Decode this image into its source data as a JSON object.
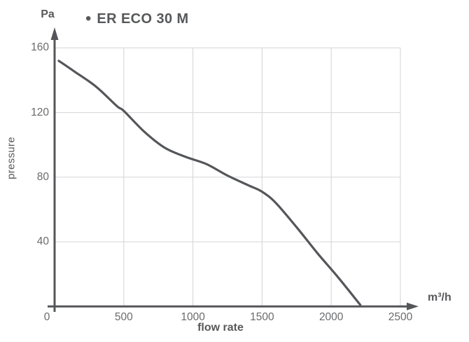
{
  "chart": {
    "legend": {
      "bullet": "•"
    },
    "colors": {
      "curve": "#55565a",
      "axis": "#55565a",
      "grid": "#d9dadb",
      "tick_text": "#6a6b6d",
      "label_text": "#58595b"
    }
  },
  "chart_data": {
    "type": "line",
    "title": "",
    "xlabel": "flow rate",
    "x_unit": "m³/h",
    "ylabel": "pressure",
    "y_unit": "Pa",
    "xlim": [
      0,
      2500
    ],
    "ylim": [
      0,
      160
    ],
    "x_ticks": [
      0,
      500,
      1000,
      1500,
      2000,
      2500
    ],
    "y_ticks": [
      40,
      80,
      120,
      160
    ],
    "grid": true,
    "legend_position": "top-left",
    "series": [
      {
        "name": "ER ECO 30 M",
        "points": [
          [
            30,
            152
          ],
          [
            150,
            145
          ],
          [
            300,
            136
          ],
          [
            450,
            124
          ],
          [
            500,
            121
          ],
          [
            650,
            108
          ],
          [
            800,
            98
          ],
          [
            950,
            92.5
          ],
          [
            1100,
            88
          ],
          [
            1250,
            81
          ],
          [
            1400,
            75
          ],
          [
            1500,
            71
          ],
          [
            1600,
            64
          ],
          [
            1750,
            49
          ],
          [
            1900,
            33
          ],
          [
            2050,
            18
          ],
          [
            2210,
            1
          ]
        ]
      }
    ]
  }
}
